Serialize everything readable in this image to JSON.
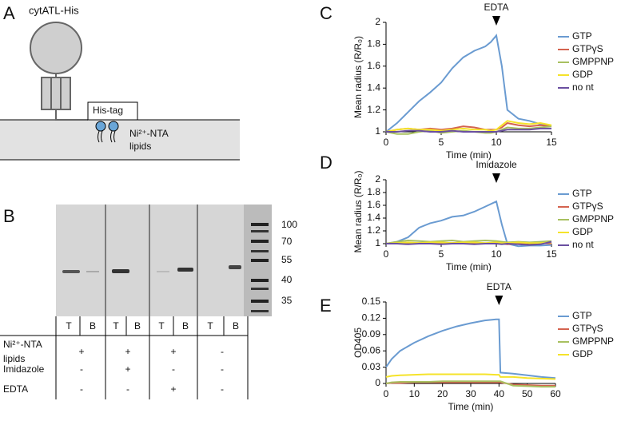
{
  "panel_labels": [
    "A",
    "B"
  ],
  "diagram": {
    "protein": "cytATL-His",
    "tag": "His-tag",
    "lipid_line1": "Ni²⁺-NTA",
    "lipid_line2": "lipids"
  },
  "gel": {
    "ladder": [
      "100",
      "70",
      "55",
      "40",
      "35"
    ],
    "lanes": [
      "T",
      "B",
      "T",
      "B",
      "T",
      "B",
      "T",
      "B"
    ]
  },
  "table": {
    "rows": [
      {
        "label": "Ni²⁺-NTA",
        "label2": "lipids",
        "cells": [
          "+",
          "+",
          "+",
          "-"
        ]
      },
      {
        "label": "Imidazole",
        "cells": [
          "-",
          "+",
          "-",
          "-"
        ]
      },
      {
        "label": "EDTA",
        "cells": [
          "-",
          "-",
          "+",
          "-"
        ]
      }
    ]
  },
  "chart_data": [
    {
      "type": "line",
      "panel": "C",
      "annotation": "EDTA",
      "annotation_x": 10,
      "xlabel": "Time (min)",
      "ylabel": "Mean radius (R/R₀)",
      "xlim": [
        0,
        15
      ],
      "ylim": [
        1,
        2
      ],
      "xticks": [
        0,
        5,
        10,
        15
      ],
      "yticks": [
        1,
        1.2,
        1.4,
        1.6,
        1.8,
        2
      ],
      "x": [
        0,
        1,
        2,
        3,
        4,
        5,
        6,
        7,
        8,
        9,
        9.5,
        10,
        10.5,
        11,
        12,
        13,
        14,
        15
      ],
      "series": [
        {
          "name": "GTP",
          "color": "#6a9bd1",
          "values": [
            1,
            1.08,
            1.18,
            1.28,
            1.36,
            1.45,
            1.58,
            1.68,
            1.74,
            1.78,
            1.82,
            1.88,
            1.6,
            1.2,
            1.12,
            1.1,
            1.07,
            1.05
          ]
        },
        {
          "name": "GTPγS",
          "color": "#d4634f",
          "values": [
            1,
            1.02,
            1.03,
            1.02,
            1.03,
            1.02,
            1.03,
            1.05,
            1.04,
            1.02,
            1.02,
            1.02,
            1.04,
            1.08,
            1.06,
            1.05,
            1.06,
            1.05
          ]
        },
        {
          "name": "GMPPNP",
          "color": "#a8c060",
          "values": [
            1,
            0.98,
            0.98,
            1,
            1.01,
            0.99,
            1,
            1.01,
            1,
            0.99,
            0.99,
            1,
            1.02,
            1.04,
            1.03,
            1.03,
            1.04,
            1.05
          ]
        },
        {
          "name": "GDP",
          "color": "#f5e32a",
          "values": [
            1,
            1.02,
            1.03,
            1.02,
            1.02,
            1.01,
            1.02,
            1.03,
            1.02,
            1.02,
            1.01,
            1.02,
            1.06,
            1.1,
            1.08,
            1.07,
            1.08,
            1.06
          ]
        },
        {
          "name": "no nt",
          "color": "#6a4fa0",
          "values": [
            1,
            1,
            1.01,
            1.01,
            1,
            1,
            1.01,
            1,
            1,
            1,
            1,
            1,
            1.01,
            1.02,
            1.02,
            1.02,
            1.03,
            1.03
          ]
        }
      ]
    },
    {
      "type": "line",
      "panel": "D",
      "annotation": "Imidazole",
      "annotation_x": 10,
      "xlabel": "Time (min)",
      "ylabel": "Mean radius (R/R₀)",
      "xlim": [
        0,
        15
      ],
      "ylim": [
        1,
        2
      ],
      "xticks": [
        0,
        5,
        10,
        15
      ],
      "yticks": [
        1,
        1.2,
        1.4,
        1.6,
        1.8,
        2
      ],
      "x": [
        0,
        1,
        2,
        3,
        4,
        5,
        6,
        7,
        8,
        9,
        10,
        10.5,
        11,
        12,
        13,
        14,
        15
      ],
      "series": [
        {
          "name": "GTP",
          "color": "#6a9bd1",
          "values": [
            1,
            1.03,
            1.1,
            1.25,
            1.32,
            1.36,
            1.42,
            1.44,
            1.5,
            1.58,
            1.66,
            1.3,
            1,
            0.96,
            0.97,
            0.97,
            0.98
          ]
        },
        {
          "name": "GTPγS",
          "color": "#d4634f",
          "values": [
            1,
            1.01,
            1,
            1.01,
            1.02,
            1.01,
            1.01,
            1.02,
            1.01,
            1,
            1,
            1,
            0.99,
            1,
            1.01,
            1.01,
            1
          ]
        },
        {
          "name": "GMPPNP",
          "color": "#a8c060",
          "values": [
            1,
            1.03,
            1.05,
            1.04,
            1.03,
            1.04,
            1.05,
            1.03,
            1.04,
            1.05,
            1.04,
            1.03,
            1.02,
            1.03,
            1.02,
            1.03,
            1.04
          ]
        },
        {
          "name": "GDP",
          "color": "#f5e32a",
          "values": [
            1,
            1.01,
            1.02,
            1.01,
            1.02,
            1.02,
            1.01,
            1.02,
            1.02,
            1.01,
            1.02,
            1.01,
            1.01,
            1.02,
            1.01,
            1.01,
            1.02
          ]
        },
        {
          "name": "no nt",
          "color": "#6a4fa0",
          "values": [
            1,
            1,
            0.99,
            1,
            1,
            0.99,
            1,
            1,
            0.99,
            1,
            1,
            0.99,
            1,
            0.99,
            0.98,
            0.99,
            1.03
          ]
        }
      ]
    },
    {
      "type": "line",
      "panel": "E",
      "annotation": "EDTA",
      "annotation_x": 40,
      "xlabel": "Time (min)",
      "ylabel": "OD405",
      "xlim": [
        0,
        60
      ],
      "ylim": [
        0,
        0.15
      ],
      "xticks": [
        0,
        10,
        20,
        30,
        40,
        50,
        60
      ],
      "yticks": [
        0,
        0.03,
        0.06,
        0.09,
        0.12,
        0.15
      ],
      "x": [
        0,
        2,
        5,
        10,
        15,
        20,
        25,
        30,
        35,
        39,
        40,
        40.5,
        45,
        50,
        55,
        60
      ],
      "series": [
        {
          "name": "GTP",
          "color": "#6a9bd1",
          "values": [
            0.03,
            0.045,
            0.06,
            0.075,
            0.087,
            0.097,
            0.105,
            0.111,
            0.116,
            0.118,
            0.118,
            0.02,
            0.018,
            0.015,
            0.012,
            0.01
          ]
        },
        {
          "name": "GTPγS",
          "color": "#d4634f",
          "values": [
            0,
            0.001,
            0.001,
            0.002,
            0.002,
            0.002,
            0.002,
            0.002,
            0.002,
            0.002,
            0.002,
            0.002,
            -0.002,
            -0.003,
            -0.004,
            -0.004
          ]
        },
        {
          "name": "GMPPNP",
          "color": "#a8c060",
          "values": [
            0,
            0.002,
            0.003,
            0.003,
            0.003,
            0.004,
            0.004,
            0.004,
            0.004,
            0.004,
            0.004,
            0.004,
            -0.004,
            -0.005,
            -0.006,
            -0.006
          ]
        },
        {
          "name": "GDP",
          "color": "#f5e32a",
          "values": [
            0.012,
            0.014,
            0.015,
            0.016,
            0.017,
            0.017,
            0.017,
            0.017,
            0.017,
            0.016,
            0.016,
            0.012,
            0.012,
            0.01,
            0.009,
            0.008
          ]
        }
      ]
    }
  ]
}
